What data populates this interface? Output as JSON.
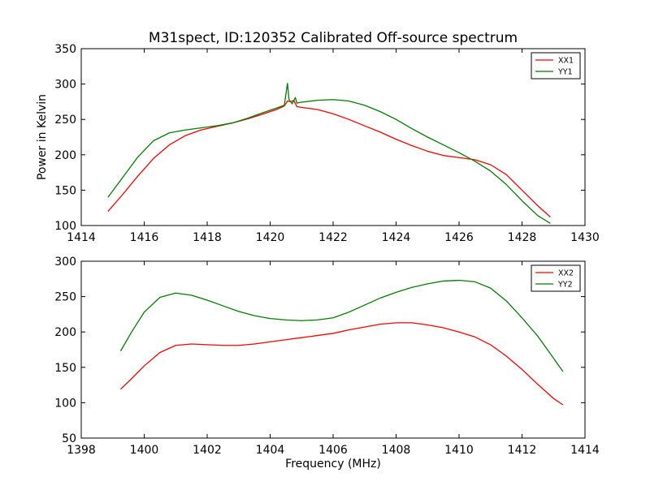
{
  "figure": {
    "title": "M31spect, ID:120352 Calibrated Off-source spectrum",
    "background": "#ffffff"
  },
  "colors": {
    "xx": "#ff0000",
    "yy": "#007f00",
    "axes": "#000000"
  },
  "chart_data": [
    {
      "type": "line",
      "title": "M31spect, ID:120352 Calibrated Off-source spectrum",
      "xlabel": "",
      "ylabel": "Power in Kelvin",
      "xlim": [
        1414,
        1430
      ],
      "ylim": [
        100,
        350
      ],
      "xticks": [
        1414,
        1416,
        1418,
        1420,
        1422,
        1424,
        1426,
        1428,
        1430
      ],
      "yticks": [
        100,
        150,
        200,
        250,
        300,
        350
      ],
      "grid": false,
      "legend_position": "top-right",
      "series": [
        {
          "name": "XX1",
          "color": "#ff0000",
          "x": [
            1414.85,
            1415.3,
            1415.8,
            1416.3,
            1416.8,
            1417.3,
            1417.8,
            1418.3,
            1418.8,
            1419.3,
            1419.8,
            1420.2,
            1420.45,
            1420.55,
            1420.65,
            1420.75,
            1420.85,
            1421.0,
            1421.5,
            1422.0,
            1422.5,
            1423.0,
            1423.5,
            1424.0,
            1424.5,
            1425.0,
            1425.5,
            1426.0,
            1426.5,
            1427.0,
            1427.5,
            1428.0,
            1428.5,
            1428.9
          ],
          "y": [
            120,
            143,
            170,
            195,
            214,
            227,
            235,
            240,
            245,
            251,
            258,
            264,
            269,
            276,
            275,
            277,
            268,
            267,
            264,
            258,
            250,
            241,
            232,
            222,
            213,
            205,
            199,
            196,
            193,
            186,
            172,
            150,
            128,
            112
          ]
        },
        {
          "name": "YY1",
          "color": "#007f00",
          "x": [
            1414.85,
            1415.3,
            1415.8,
            1416.3,
            1416.8,
            1417.3,
            1417.8,
            1418.3,
            1418.8,
            1419.3,
            1419.8,
            1420.2,
            1420.45,
            1420.55,
            1420.6,
            1420.7,
            1420.8,
            1420.85,
            1420.95,
            1421.5,
            1422.0,
            1422.5,
            1423.0,
            1423.5,
            1424.0,
            1424.5,
            1425.0,
            1425.5,
            1426.0,
            1426.5,
            1427.0,
            1427.5,
            1428.0,
            1428.5,
            1428.9
          ],
          "y": [
            140,
            167,
            197,
            220,
            231,
            235,
            238,
            241,
            245,
            252,
            260,
            266,
            270,
            301,
            278,
            272,
            281,
            273,
            274,
            277,
            278,
            276,
            270,
            261,
            250,
            237,
            225,
            214,
            203,
            191,
            177,
            158,
            135,
            114,
            103
          ]
        }
      ]
    },
    {
      "type": "line",
      "title": "",
      "xlabel": "Frequency (MHz)",
      "ylabel": "",
      "xlim": [
        1398,
        1414
      ],
      "ylim": [
        50,
        300
      ],
      "xticks": [
        1398,
        1400,
        1402,
        1404,
        1406,
        1408,
        1410,
        1412,
        1414
      ],
      "yticks": [
        50,
        100,
        150,
        200,
        250,
        300
      ],
      "grid": false,
      "legend_position": "top-right",
      "series": [
        {
          "name": "XX2",
          "color": "#ff0000",
          "x": [
            1399.25,
            1399.6,
            1400.0,
            1400.5,
            1401.0,
            1401.5,
            1402.0,
            1402.5,
            1403.0,
            1403.5,
            1404.0,
            1404.5,
            1405.0,
            1405.5,
            1406.0,
            1406.5,
            1407.0,
            1407.5,
            1408.0,
            1408.5,
            1409.0,
            1409.5,
            1410.0,
            1410.5,
            1411.0,
            1411.5,
            1412.0,
            1412.5,
            1413.0,
            1413.3
          ],
          "y": [
            119,
            134,
            152,
            171,
            181,
            183,
            182,
            181,
            181,
            183,
            186,
            189,
            192,
            195,
            198,
            203,
            207,
            211,
            213,
            213,
            210,
            206,
            200,
            193,
            182,
            166,
            147,
            126,
            106,
            97
          ]
        },
        {
          "name": "YY2",
          "color": "#007f00",
          "x": [
            1399.25,
            1399.6,
            1400.0,
            1400.5,
            1401.0,
            1401.5,
            1402.0,
            1402.5,
            1403.0,
            1403.5,
            1404.0,
            1404.5,
            1405.0,
            1405.5,
            1406.0,
            1406.5,
            1407.0,
            1407.5,
            1408.0,
            1408.5,
            1409.0,
            1409.5,
            1410.0,
            1410.5,
            1411.0,
            1411.5,
            1412.0,
            1412.5,
            1413.0,
            1413.3
          ],
          "y": [
            173,
            200,
            228,
            249,
            255,
            252,
            245,
            237,
            229,
            223,
            219,
            217,
            216,
            217,
            220,
            228,
            238,
            248,
            256,
            263,
            268,
            272,
            273,
            271,
            262,
            244,
            220,
            194,
            163,
            144
          ]
        }
      ]
    }
  ]
}
